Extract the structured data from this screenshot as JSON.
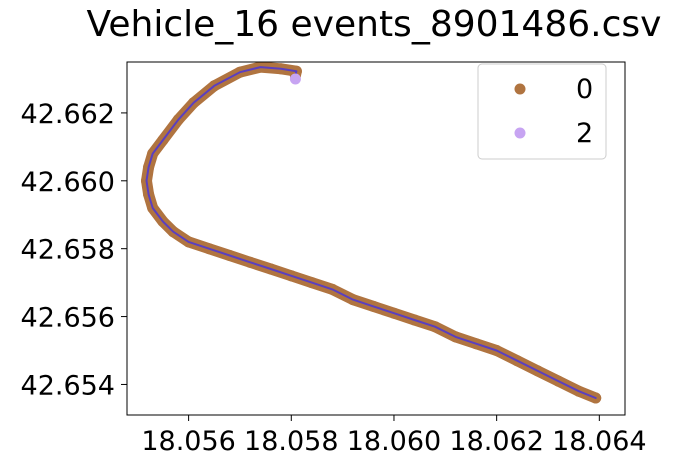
{
  "chart_data": {
    "type": "scatter",
    "title": "Vehicle_16 events_8901486.csv",
    "xlabel": "",
    "ylabel": "",
    "xlim": [
      18.0548,
      18.0645
    ],
    "ylim": [
      42.6531,
      42.6635
    ],
    "x_ticks": [
      18.056,
      18.058,
      18.06,
      18.062,
      18.064
    ],
    "x_tick_labels": [
      "18.056",
      "18.058",
      "18.060",
      "18.062",
      "18.064"
    ],
    "y_ticks": [
      42.654,
      42.656,
      42.658,
      42.66,
      42.662
    ],
    "y_tick_labels": [
      "42.654",
      "42.656",
      "42.658",
      "42.660",
      "42.662"
    ],
    "grid": false,
    "legend_position": "top-right",
    "series": [
      {
        "name": "0",
        "color": "#b07440",
        "line_color": "#5a3fc0",
        "points": [
          [
            18.06393,
            42.6536
          ],
          [
            18.0636,
            42.6538
          ],
          [
            18.0632,
            42.6541
          ],
          [
            18.0628,
            42.6544
          ],
          [
            18.0624,
            42.6547
          ],
          [
            18.062,
            42.655
          ],
          [
            18.0616,
            42.6552
          ],
          [
            18.0612,
            42.6554
          ],
          [
            18.0608,
            42.6557
          ],
          [
            18.0604,
            42.6559
          ],
          [
            18.06,
            42.6561
          ],
          [
            18.0596,
            42.6563
          ],
          [
            18.0592,
            42.6565
          ],
          [
            18.0588,
            42.6568
          ],
          [
            18.0584,
            42.657
          ],
          [
            18.058,
            42.6572
          ],
          [
            18.0576,
            42.6574
          ],
          [
            18.0572,
            42.6576
          ],
          [
            18.0568,
            42.6578
          ],
          [
            18.0564,
            42.658
          ],
          [
            18.056,
            42.6582
          ],
          [
            18.0557,
            42.6585
          ],
          [
            18.0555,
            42.6588
          ],
          [
            18.0553,
            42.6592
          ],
          [
            18.05522,
            42.6596
          ],
          [
            18.05518,
            42.66
          ],
          [
            18.05522,
            42.6604
          ],
          [
            18.0553,
            42.6608
          ],
          [
            18.0555,
            42.6612
          ],
          [
            18.0558,
            42.6618
          ],
          [
            18.0561,
            42.6623
          ],
          [
            18.0565,
            42.6628
          ],
          [
            18.057,
            42.6632
          ],
          [
            18.0574,
            42.66335
          ],
          [
            18.0578,
            42.6633
          ],
          [
            18.0581,
            42.66323
          ],
          [
            18.05808,
            42.6631
          ]
        ]
      },
      {
        "name": "2",
        "color": "#c7a4f2",
        "points": [
          [
            18.05808,
            42.663
          ]
        ]
      }
    ]
  }
}
